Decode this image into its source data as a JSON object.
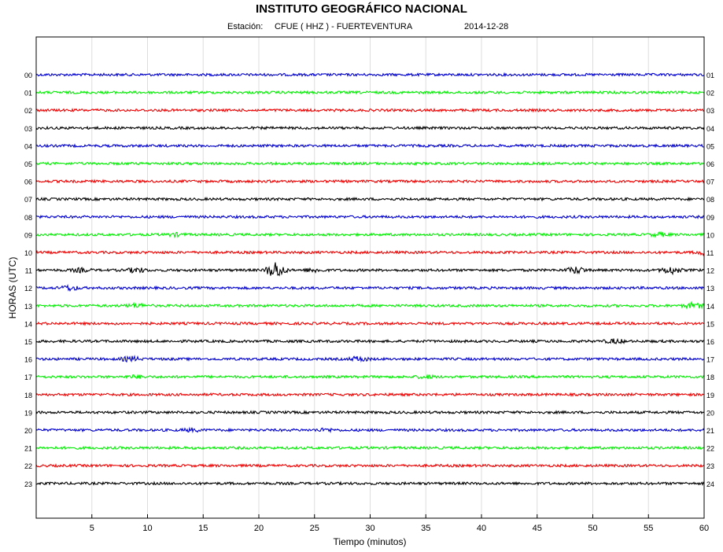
{
  "title": "INSTITUTO GEOGRÁFICO NACIONAL",
  "station_label": "Estación:",
  "station_value": "CFUE ( HHZ ) - FUERTEVENTURA",
  "date": "2014-12-28",
  "chart_data": {
    "type": "line",
    "title": "INSTITUTO GEOGRÁFICO NACIONAL",
    "xlabel": "Tiempo (minutos)",
    "ylabel": "HORAS (UTC)",
    "xlim": [
      0,
      60
    ],
    "x_ticks": [
      5,
      10,
      15,
      20,
      25,
      30,
      35,
      40,
      45,
      50,
      55,
      60
    ],
    "grid": true,
    "left_labels": [
      "00",
      "01",
      "02",
      "03",
      "04",
      "05",
      "06",
      "07",
      "08",
      "09",
      "10",
      "11",
      "12",
      "13",
      "14",
      "15",
      "16",
      "17",
      "18",
      "19",
      "20",
      "21",
      "22",
      "23"
    ],
    "right_labels": [
      "01",
      "02",
      "03",
      "04",
      "05",
      "06",
      "07",
      "08",
      "09",
      "10",
      "11",
      "12",
      "13",
      "14",
      "15",
      "16",
      "17",
      "18",
      "19",
      "20",
      "21",
      "22",
      "23",
      "24"
    ],
    "trace_colors": [
      "#0000cc",
      "#00ee00",
      "#ee0000",
      "#000000"
    ],
    "events": [
      {
        "hour": 9,
        "minute": 12.5,
        "strength": 0.4
      },
      {
        "hour": 9,
        "minute": 56,
        "strength": 0.5
      },
      {
        "hour": 10,
        "minute": 60,
        "strength": 0.6
      },
      {
        "hour": 11,
        "minute": 4,
        "strength": 0.5
      },
      {
        "hour": 11,
        "minute": 9,
        "strength": 0.7
      },
      {
        "hour": 11,
        "minute": 21.5,
        "strength": 2.6
      },
      {
        "hour": 11,
        "minute": 25,
        "strength": 0.5
      },
      {
        "hour": 11,
        "minute": 48.5,
        "strength": 1.0
      },
      {
        "hour": 11,
        "minute": 57,
        "strength": 1.1
      },
      {
        "hour": 12,
        "minute": 3,
        "strength": 0.7
      },
      {
        "hour": 13,
        "minute": 9,
        "strength": 0.6
      },
      {
        "hour": 13,
        "minute": 59,
        "strength": 0.8
      },
      {
        "hour": 15,
        "minute": 52,
        "strength": 0.6
      },
      {
        "hour": 16,
        "minute": 8.5,
        "strength": 0.7
      },
      {
        "hour": 16,
        "minute": 29,
        "strength": 0.7
      },
      {
        "hour": 17,
        "minute": 9,
        "strength": 0.4
      },
      {
        "hour": 17,
        "minute": 35,
        "strength": 0.4
      },
      {
        "hour": 20,
        "minute": 14,
        "strength": 0.4
      },
      {
        "hour": 20,
        "minute": 26,
        "strength": 0.4
      }
    ]
  }
}
